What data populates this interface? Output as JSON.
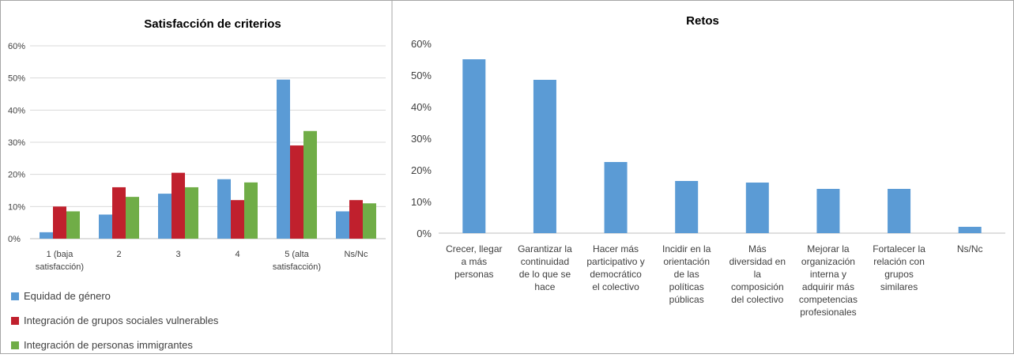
{
  "colors": {
    "blue": "#5B9BD5",
    "red": "#C0202D",
    "green": "#70AD47",
    "grid": "#D9D9D9",
    "axis": "#BFBFBF",
    "text": "#404040"
  },
  "chart_data": [
    {
      "type": "bar",
      "title": "Satisfacción de criterios",
      "categories": [
        [
          "1 (baja",
          "satisfacción)"
        ],
        [
          "2"
        ],
        [
          "3"
        ],
        [
          "4"
        ],
        [
          "5 (alta",
          "satisfacción)"
        ],
        [
          "Ns/Nc"
        ]
      ],
      "series": [
        {
          "name": "Equidad de género",
          "color": "#5B9BD5",
          "values": [
            2,
            7.5,
            14,
            18.5,
            49.5,
            8.5
          ]
        },
        {
          "name": "Integración de grupos sociales vulnerables",
          "color": "#C0202D",
          "values": [
            10,
            16,
            20.5,
            12,
            29,
            12
          ]
        },
        {
          "name": "Integración de personas immigrantes",
          "color": "#70AD47",
          "values": [
            8.5,
            13,
            16,
            17.5,
            33.5,
            11
          ]
        }
      ],
      "ylim": [
        0,
        60
      ],
      "yticks": [
        "0%",
        "10%",
        "20%",
        "30%",
        "40%",
        "50%",
        "60%"
      ],
      "grid": true,
      "legend": "bottom-left"
    },
    {
      "type": "bar",
      "title": "Retos",
      "categories": [
        [
          "Crecer, llegar",
          "a más",
          "personas"
        ],
        [
          "Garantizar la",
          "continuidad",
          "de lo que se",
          "hace"
        ],
        [
          "Hacer más",
          "participativo y",
          "democrático",
          "el colectivo"
        ],
        [
          "Incidir en la",
          "orientación",
          "de las",
          "políticas",
          "públicas"
        ],
        [
          "Más",
          "diversidad en",
          "la",
          "composición",
          "del colectivo"
        ],
        [
          "Mejorar la",
          "organización",
          "interna y",
          "adquirir más",
          "competencias",
          "profesionales"
        ],
        [
          "Fortalecer la",
          "relación con",
          "grupos",
          "similares"
        ],
        [
          "Ns/Nc"
        ]
      ],
      "series": [
        {
          "color": "#5B9BD5",
          "values": [
            55,
            48.5,
            22.5,
            16.5,
            16,
            14,
            14,
            2
          ]
        }
      ],
      "ylim": [
        0,
        60
      ],
      "yticks": [
        "0%",
        "10%",
        "20%",
        "30%",
        "40%",
        "50%",
        "60%"
      ],
      "grid": false
    }
  ]
}
